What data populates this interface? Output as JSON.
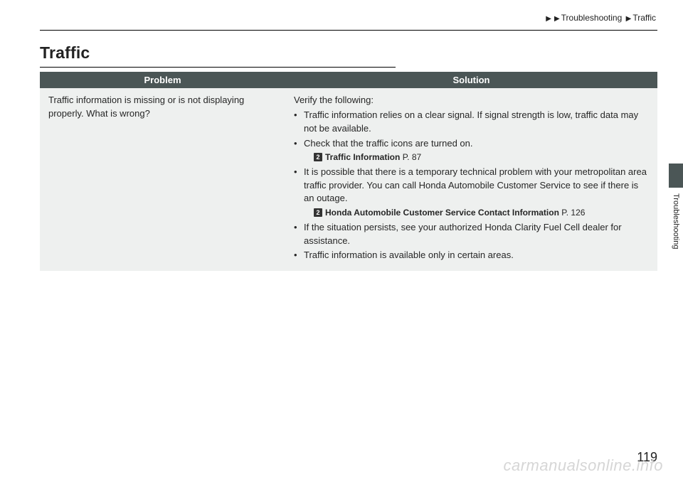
{
  "breadcrumb": {
    "l1": "Troubleshooting",
    "l2": "Traffic",
    "arrow": "▶"
  },
  "section_title": "Traffic",
  "table": {
    "headers": {
      "problem": "Problem",
      "solution": "Solution"
    },
    "row": {
      "problem": "Traffic information is missing or is not displaying properly. What is wrong?",
      "solution_lead": "Verify the following:",
      "bullets": {
        "b1": "Traffic information relies on a clear signal. If signal strength is low, traffic data may not be available.",
        "b2": "Check that the traffic icons are turned on.",
        "b2_xref_title": "Traffic Information",
        "b2_xref_page": "P. 87",
        "b3": "It is possible that there is a temporary technical problem with your metropolitan area traffic provider. You can call Honda Automobile Customer Service to see if there is an outage.",
        "b3_xref_title": "Honda Automobile Customer Service Contact Information",
        "b3_xref_page": "P. 126",
        "b4": "If the situation persists, see your authorized Honda Clarity Fuel Cell dealer for assistance.",
        "b5": "Traffic information is available only in certain areas."
      }
    }
  },
  "side_label": "Troubleshooting",
  "page_number": "119",
  "watermark": "carmanualsonline.info",
  "xref_icon": "2"
}
